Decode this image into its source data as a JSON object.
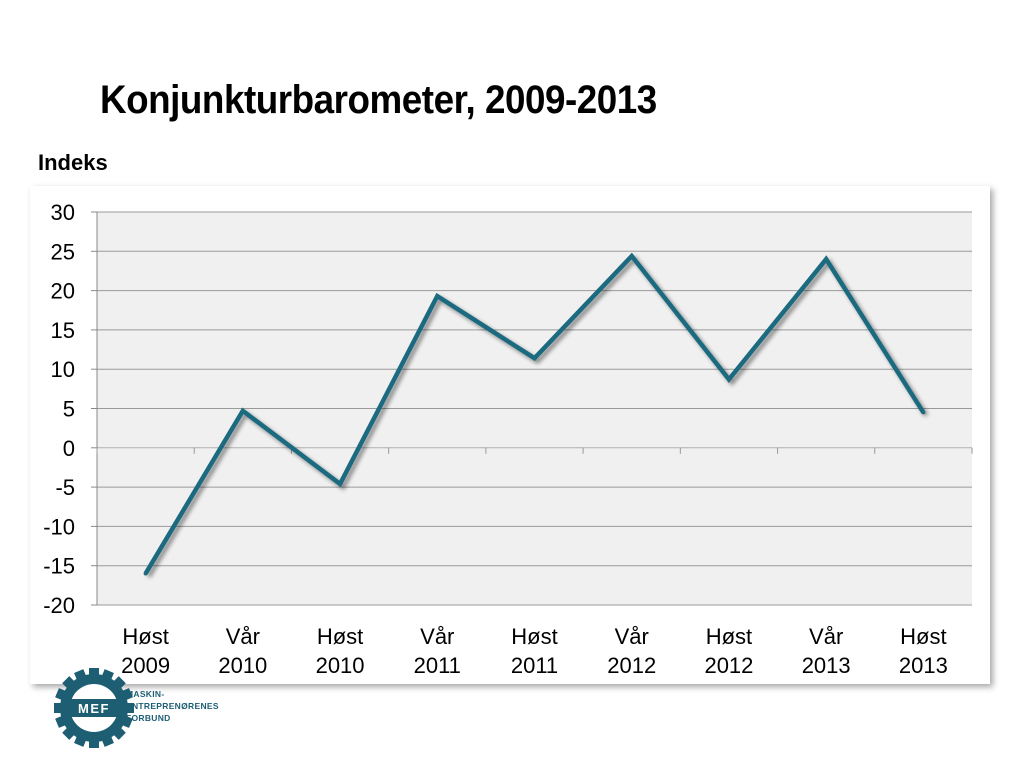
{
  "title": "Konjunkturbarometer, 2009-2013",
  "ylabel": "Indeks",
  "chart_data": {
    "type": "line",
    "title": "Konjunkturbarometer, 2009-2013",
    "ylabel": "Indeks",
    "xlabel": "",
    "categories": [
      [
        "Høst",
        "2009"
      ],
      [
        "Vår",
        "2010"
      ],
      [
        "Høst",
        "2010"
      ],
      [
        "Vår",
        "2011"
      ],
      [
        "Høst",
        "2011"
      ],
      [
        "Vår",
        "2012"
      ],
      [
        "Høst",
        "2012"
      ],
      [
        "Vår",
        "2013"
      ],
      [
        "Høst",
        "2013"
      ]
    ],
    "values": [
      -16,
      4.7,
      -4.6,
      19.3,
      11.4,
      24.4,
      8.7,
      24.0,
      4.5
    ],
    "ylim": [
      -20,
      30
    ],
    "yticks": [
      30,
      25,
      20,
      15,
      10,
      5,
      0,
      -5,
      -10,
      -15,
      -20
    ],
    "grid": true,
    "legend": "none",
    "colors": {
      "line": "#1f6b7f",
      "plot_bg": "#f0f0f0",
      "grid": "#9a9a9a"
    }
  },
  "logo": {
    "text_lines": [
      "MASKIN-",
      "ENTREPRENØRENES",
      "FORBUND"
    ],
    "emblem": "MEF",
    "colors": {
      "brand": "#1d5e73"
    }
  }
}
